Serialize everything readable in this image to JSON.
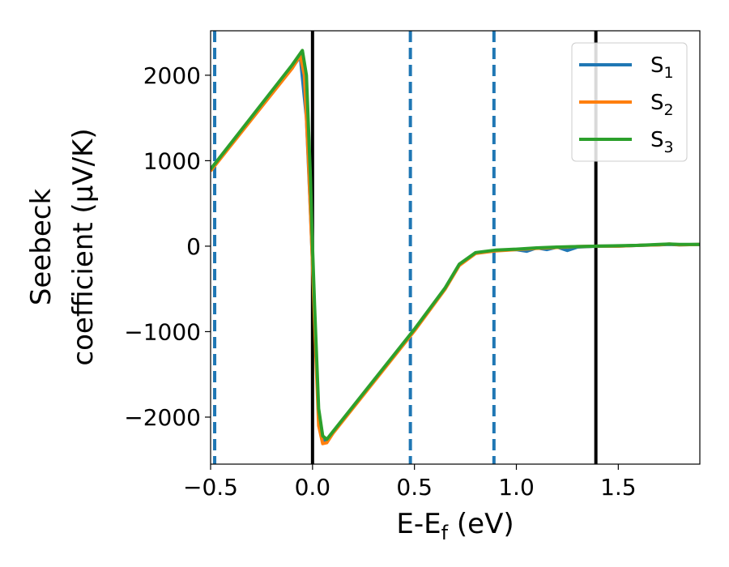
{
  "chart_data": {
    "type": "line",
    "title": "",
    "xlabel": {
      "main": "E-E",
      "sub": "f",
      "tail": " (eV)"
    },
    "ylabel": {
      "line1": "Seebeck",
      "line2": "coefficient  (μV/K)"
    },
    "xlim": [
      -0.5,
      1.9
    ],
    "ylim": [
      -2550,
      2520
    ],
    "xticks": [
      {
        "value": -0.5,
        "label": "−0.5"
      },
      {
        "value": 0.0,
        "label": "0.0"
      },
      {
        "value": 0.5,
        "label": "0.5"
      },
      {
        "value": 1.0,
        "label": "1.0"
      },
      {
        "value": 1.5,
        "label": "1.5"
      }
    ],
    "yticks": [
      {
        "value": 2000,
        "label": "2000"
      },
      {
        "value": 1000,
        "label": "1000"
      },
      {
        "value": 0,
        "label": "0"
      },
      {
        "value": -1000,
        "label": "−1000"
      },
      {
        "value": -2000,
        "label": "−2000"
      }
    ],
    "grid": false,
    "legend": {
      "position": "top-right",
      "entries": [
        {
          "main": "S",
          "sub": "1"
        },
        {
          "main": "S",
          "sub": "2"
        },
        {
          "main": "S",
          "sub": "3"
        }
      ]
    },
    "vlines": [
      {
        "x": -0.48,
        "style": "dashed",
        "color": "#1f77b4"
      },
      {
        "x": 0.0,
        "style": "solid",
        "color": "#000000"
      },
      {
        "x": 0.48,
        "style": "dashed",
        "color": "#1f77b4"
      },
      {
        "x": 0.89,
        "style": "dashed",
        "color": "#1f77b4"
      },
      {
        "x": 1.39,
        "style": "solid",
        "color": "#000000"
      }
    ],
    "series": [
      {
        "color": "#1f77b4",
        "x": [
          -0.5,
          -0.3,
          -0.1,
          -0.06,
          -0.03,
          -0.01,
          0.0,
          0.01,
          0.03,
          0.05,
          0.07,
          0.1,
          0.3,
          0.5,
          0.65,
          0.72,
          0.8,
          0.9,
          1.0,
          1.05,
          1.1,
          1.15,
          1.2,
          1.25,
          1.3,
          1.4,
          1.5,
          1.6,
          1.7,
          1.75,
          1.8,
          1.9
        ],
        "y": [
          900,
          1500,
          2090,
          2220,
          1500,
          400,
          -200,
          -800,
          -2000,
          -2270,
          -2280,
          -2180,
          -1580,
          -980,
          -500,
          -220,
          -80,
          -50,
          -40,
          -60,
          -20,
          -40,
          -10,
          -50,
          -10,
          0,
          0,
          10,
          15,
          20,
          15,
          20
        ]
      },
      {
        "color": "#ff7f0e",
        "x": [
          -0.5,
          -0.3,
          -0.1,
          -0.06,
          -0.04,
          -0.02,
          0.0,
          0.01,
          0.03,
          0.05,
          0.07,
          0.1,
          0.3,
          0.5,
          0.65,
          0.72,
          0.8,
          0.9,
          1.0,
          1.1,
          1.2,
          1.3,
          1.4,
          1.5,
          1.6,
          1.7,
          1.75,
          1.8,
          1.9
        ],
        "y": [
          880,
          1480,
          2080,
          2230,
          2000,
          1000,
          -200,
          -900,
          -2100,
          -2310,
          -2300,
          -2190,
          -1590,
          -990,
          -505,
          -225,
          -85,
          -55,
          -40,
          -25,
          -15,
          -5,
          0,
          0,
          10,
          15,
          25,
          15,
          20
        ]
      },
      {
        "color": "#2ca02c",
        "x": [
          -0.5,
          -0.3,
          -0.1,
          -0.05,
          -0.03,
          -0.01,
          0.0,
          0.01,
          0.03,
          0.05,
          0.07,
          0.1,
          0.3,
          0.5,
          0.65,
          0.72,
          0.8,
          0.9,
          1.0,
          1.1,
          1.2,
          1.3,
          1.4,
          1.5,
          1.6,
          1.7,
          1.75,
          1.8,
          1.9
        ],
        "y": [
          900,
          1510,
          2120,
          2290,
          2000,
          800,
          0,
          -700,
          -1900,
          -2220,
          -2260,
          -2170,
          -1570,
          -970,
          -490,
          -210,
          -75,
          -45,
          -35,
          -20,
          -10,
          -5,
          0,
          5,
          10,
          20,
          25,
          20,
          20
        ]
      }
    ]
  }
}
